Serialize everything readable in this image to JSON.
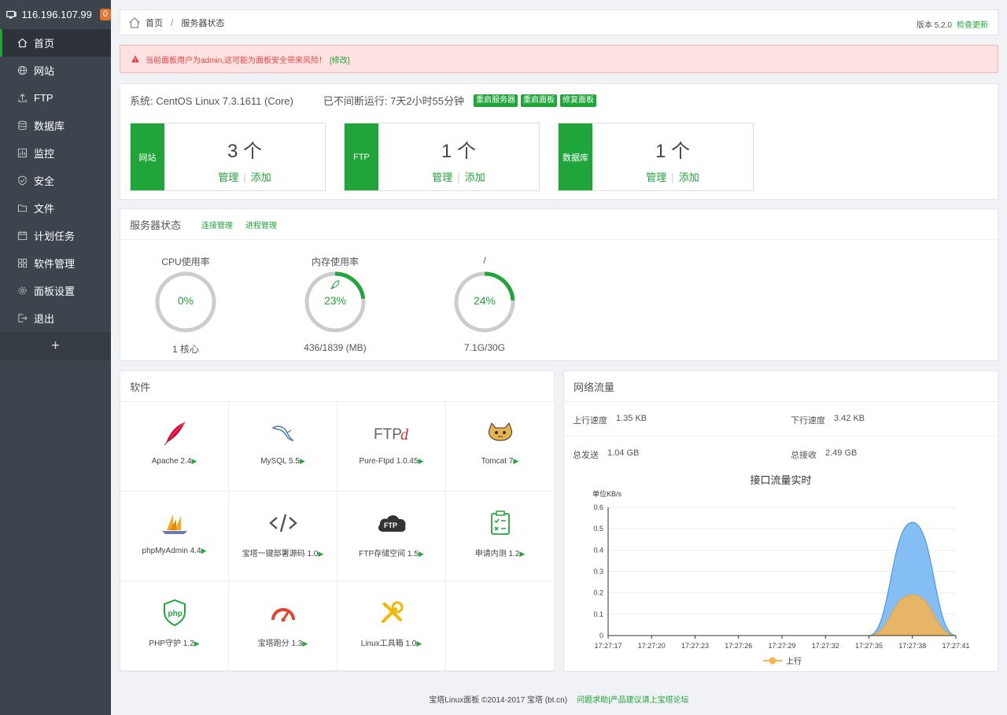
{
  "sidebar": {
    "ip": "116.196.107.99",
    "badge": "0",
    "items": [
      {
        "label": "首页"
      },
      {
        "label": "网站"
      },
      {
        "label": "FTP"
      },
      {
        "label": "数据库"
      },
      {
        "label": "监控"
      },
      {
        "label": "安全"
      },
      {
        "label": "文件"
      },
      {
        "label": "计划任务"
      },
      {
        "label": "软件管理"
      },
      {
        "label": "面板设置"
      },
      {
        "label": "退出"
      }
    ],
    "add_label": "+"
  },
  "breadcrumb": {
    "home": "首页",
    "sep": "/",
    "current": "服务器状态",
    "version": "版本 5.2.0",
    "check_update": "检查更新"
  },
  "warning": {
    "text": "当前面板用户为admin,这可能为面板安全带来风险！",
    "fix": "[修改]"
  },
  "system": {
    "os": "系统: CentOS Linux 7.3.1611 (Core)",
    "uptime": "已不间断运行: 7天2小时55分钟",
    "buttons": [
      "重启服务器",
      "重启面板",
      "修复面板"
    ],
    "stats": [
      {
        "tag": "网站",
        "count": "3 个",
        "manage": "管理",
        "add": "添加"
      },
      {
        "tag": "FTP",
        "count": "1 个",
        "manage": "管理",
        "add": "添加"
      },
      {
        "tag": "数据库",
        "count": "1 个",
        "manage": "管理",
        "add": "添加"
      }
    ]
  },
  "status": {
    "title": "服务器状态",
    "links": [
      "连接管理",
      "进程管理"
    ],
    "gauges": [
      {
        "title": "CPU使用率",
        "percent": "0%",
        "value": 0,
        "detail": "1 核心"
      },
      {
        "title": "内存使用率",
        "percent": "23%",
        "value": 23,
        "detail": "436/1839 (MB)"
      },
      {
        "title": "/",
        "percent": "24%",
        "value": 24,
        "detail": "7.1G/30G"
      }
    ],
    "colors": {
      "accent": "#20a53a",
      "track": "#cccccc"
    }
  },
  "software": {
    "title": "软件",
    "items": [
      {
        "name": "Apache 2.4",
        "icon": "apache-feather-icon"
      },
      {
        "name": "MySQL 5.5",
        "icon": "mysql-dolphin-icon"
      },
      {
        "name": "Pure-Ftpd 1.0.45",
        "icon": "pure-ftpd-icon"
      },
      {
        "name": "Tomcat 7",
        "icon": "tomcat-cat-icon"
      },
      {
        "name": "phpMyAdmin 4.4",
        "icon": "phpmyadmin-sailboat-icon"
      },
      {
        "name": "宝塔一键部署源码 1.0",
        "icon": "code-brackets-icon"
      },
      {
        "name": "FTP存储空间 1.5",
        "icon": "ftp-cloud-icon"
      },
      {
        "name": "申请内测 1.2",
        "icon": "clipboard-check-icon"
      },
      {
        "name": "PHP守护 1.2",
        "icon": "php-shield-icon"
      },
      {
        "name": "宝塔跑分 1.3",
        "icon": "speedometer-icon"
      },
      {
        "name": "Linux工具箱 1.0",
        "icon": "tools-icon"
      }
    ]
  },
  "network": {
    "title": "网络流量",
    "up_speed_label": "上行速度",
    "up_speed": "1.35 KB",
    "down_speed_label": "下行速度",
    "down_speed": "3.42 KB",
    "total_sent_label": "总发送",
    "total_sent": "1.04 GB",
    "total_recv_label": "总接收",
    "total_recv": "2.49 GB"
  },
  "chart_data": {
    "type": "area",
    "title": "接口流量实时",
    "ylabel": "单位KB/s",
    "ylim": [
      0,
      0.6
    ],
    "yticks": [
      "0",
      "0.1",
      "0.2",
      "0.3",
      "0.4",
      "0.5",
      "0.6"
    ],
    "categories": [
      "17:27:17",
      "17:27:20",
      "17:27:23",
      "17:27:26",
      "17:27:29",
      "17:27:32",
      "17:27:35",
      "17:27:38",
      "17:27:41"
    ],
    "series": [
      {
        "name": "",
        "color": "#6fb3f2",
        "values": [
          0,
          0,
          0,
          0,
          0,
          0,
          0,
          0.53,
          0
        ]
      },
      {
        "name": "上行",
        "color": "#f7b54c",
        "values": [
          0,
          0,
          0,
          0,
          0,
          0,
          0,
          0.19,
          0
        ]
      }
    ],
    "legend": "bottom"
  },
  "footer": {
    "copyright": "宝塔Linux面板 ©2014-2017 宝塔 (bt.cn)",
    "forum": "问题求助|产品建议请上宝塔论坛"
  }
}
